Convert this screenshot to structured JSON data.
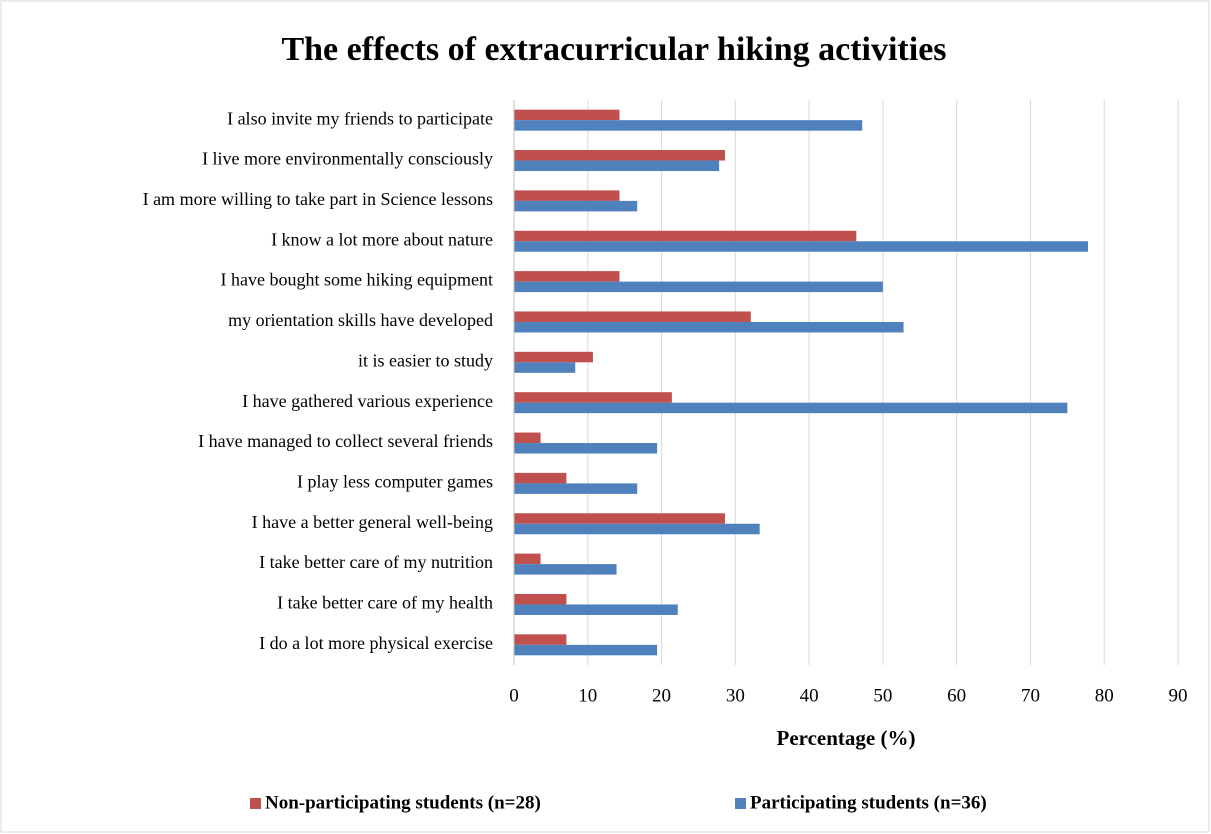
{
  "chart_data": {
    "type": "hbar",
    "title": "The effects of extracurricular hiking activities",
    "x_label": "Percentage (%)",
    "categories": [
      "I also invite my friends to participate",
      "I live more environmentally consciously",
      "I am more willing to take part in Science lessons",
      "I know a lot more about nature",
      "I have bought some hiking equipment",
      "my orientation skills have developed",
      "it is easier to study",
      "I have gathered various experience",
      "I have managed to collect several friends",
      "I play less computer games",
      "I have a better general well-being",
      "I take better care of my nutrition",
      "I take better care of my health",
      "I do a lot more physical exercise"
    ],
    "series": [
      {
        "name": "Non-participating students (n=28)",
        "color": "#c0504d",
        "values": [
          14.3,
          28.6,
          14.3,
          46.4,
          14.3,
          32.1,
          10.7,
          21.4,
          3.6,
          7.1,
          28.6,
          3.6,
          7.1,
          7.1
        ]
      },
      {
        "name": "Participating students (n=36)",
        "color": "#4f81bd",
        "values": [
          47.2,
          27.8,
          16.7,
          77.8,
          50.0,
          52.8,
          8.3,
          75.0,
          19.4,
          16.7,
          33.3,
          13.9,
          22.2,
          19.4
        ]
      }
    ],
    "xlim": [
      0,
      90
    ],
    "xticks": [
      0,
      10,
      20,
      30,
      40,
      50,
      60,
      70,
      80,
      90
    ],
    "grid": true,
    "legend": "bottom"
  }
}
